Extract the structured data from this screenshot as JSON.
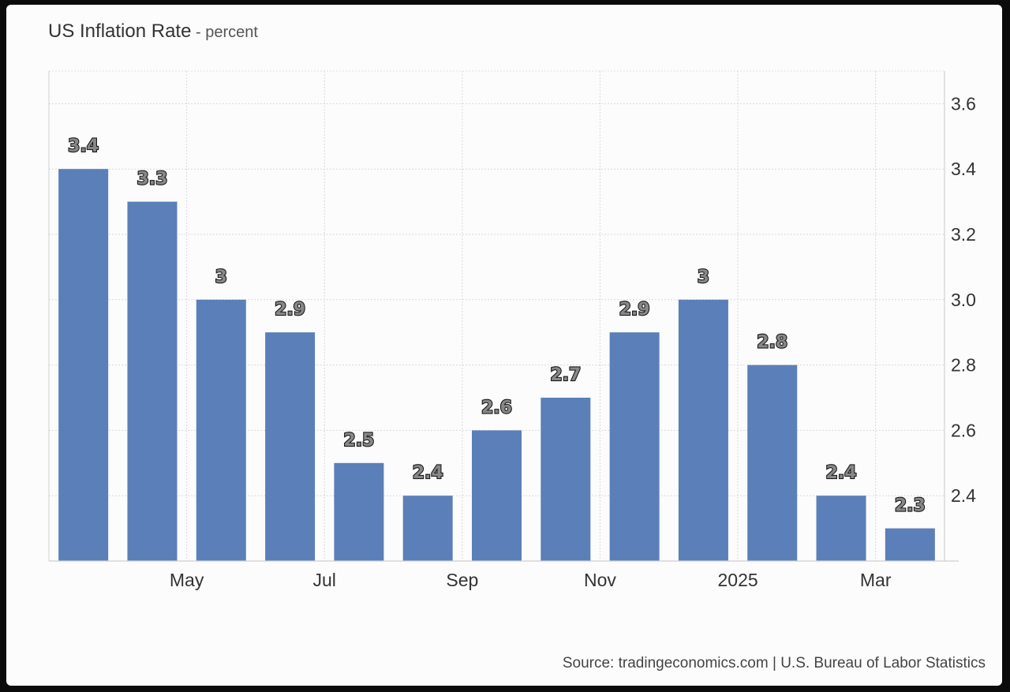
{
  "chart_data": {
    "type": "bar",
    "title": "US Inflation Rate",
    "unit": "percent",
    "source": "Source: tradingeconomics.com | U.S. Bureau of Labor Statistics",
    "x_tick_labels": [
      {
        "label": "May",
        "index": 1.5
      },
      {
        "label": "Jul",
        "index": 3.5
      },
      {
        "label": "Sep",
        "index": 5.5
      },
      {
        "label": "Nov",
        "index": 7.5
      },
      {
        "label": "2025",
        "index": 9.5
      },
      {
        "label": "Mar",
        "index": 11.5
      }
    ],
    "values": [
      3.4,
      3.3,
      3.0,
      2.9,
      2.5,
      2.4,
      2.6,
      2.7,
      2.9,
      3.0,
      2.8,
      2.4,
      2.3
    ],
    "data_labels": [
      "3.4",
      "3.3",
      "3",
      "2.9",
      "2.5",
      "2.4",
      "2.6",
      "2.7",
      "2.9",
      "3",
      "2.8",
      "2.4",
      "2.3"
    ],
    "yticks": [
      "2.4",
      "2.6",
      "2.8",
      "3.0",
      "3.2",
      "3.4",
      "3.6"
    ],
    "ylim": [
      2.2,
      3.7
    ],
    "y_axis_side": "right",
    "grid": true,
    "bar_color": "#5b7fb8"
  }
}
